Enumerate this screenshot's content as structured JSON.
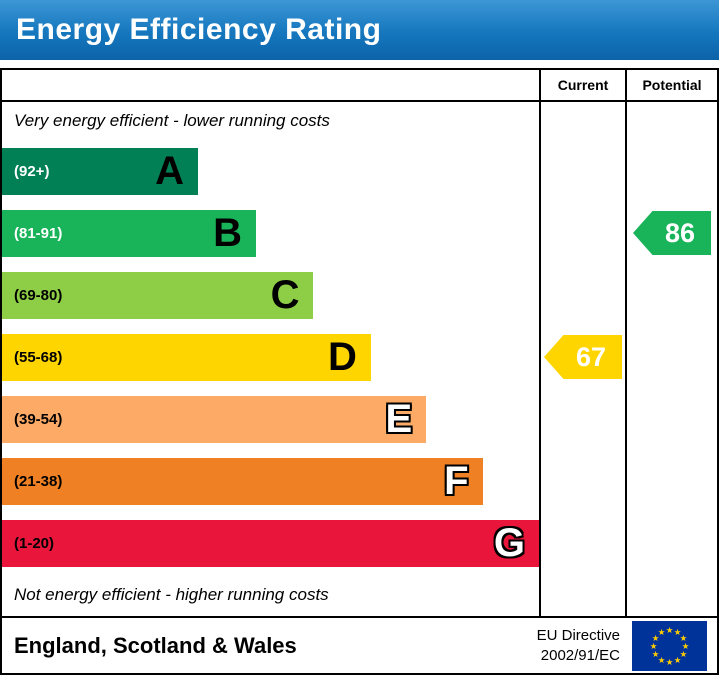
{
  "header": {
    "title": "Energy Efficiency Rating",
    "bg_color": "#1577be"
  },
  "columns": {
    "current": "Current",
    "potential": "Potential"
  },
  "captions": {
    "top": "Very energy efficient - lower running costs",
    "bottom": "Not energy efficient - higher running costs"
  },
  "chart_data": {
    "type": "bar",
    "subtype": "epc-energy-efficiency-rating",
    "orientation": "horizontal",
    "bands": [
      {
        "letter": "A",
        "range": "(92+)",
        "color": "#008054",
        "width_pct": 36.5,
        "range_color": "#ffffff",
        "letter_outline": false
      },
      {
        "letter": "B",
        "range": "(81-91)",
        "color": "#19b459",
        "width_pct": 47.3,
        "range_color": "#ffffff",
        "letter_outline": false
      },
      {
        "letter": "C",
        "range": "(69-80)",
        "color": "#8dce46",
        "width_pct": 58.0,
        "range_color": "#000000",
        "letter_outline": false
      },
      {
        "letter": "D",
        "range": "(55-68)",
        "color": "#ffd500",
        "width_pct": 68.7,
        "range_color": "#000000",
        "letter_outline": false
      },
      {
        "letter": "E",
        "range": "(39-54)",
        "color": "#fcaa65",
        "width_pct": 79.0,
        "range_color": "#000000",
        "letter_outline": true
      },
      {
        "letter": "F",
        "range": "(21-38)",
        "color": "#ef8023",
        "width_pct": 89.5,
        "range_color": "#000000",
        "letter_outline": true
      },
      {
        "letter": "G",
        "range": "(1-20)",
        "color": "#e9153b",
        "width_pct": 100,
        "range_color": "#000000",
        "letter_outline": true
      }
    ],
    "current": {
      "label": "Current",
      "value": 67,
      "band": "D",
      "color": "#ffd500"
    },
    "potential": {
      "label": "Potential",
      "value": 86,
      "band": "B",
      "color": "#19b459"
    }
  },
  "footer": {
    "region": "England, Scotland & Wales",
    "directive_line1": "EU Directive",
    "directive_line2": "2002/91/EC",
    "flag_icon": "eu-flag",
    "flag_colors": {
      "field": "#003399",
      "stars": "#ffcc00"
    }
  }
}
